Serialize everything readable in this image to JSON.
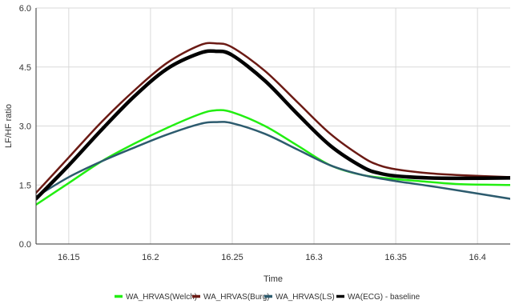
{
  "chart_data": {
    "type": "line",
    "title": "",
    "xlabel": "Time",
    "ylabel": "LF/HF ratio",
    "xlim": [
      16.13,
      16.42
    ],
    "ylim": [
      0,
      6
    ],
    "xticks": [
      16.15,
      16.2,
      16.25,
      16.3,
      16.35,
      16.4
    ],
    "xtick_labels": [
      "16.15",
      "16.2",
      "16.25",
      "16.3",
      "16.35",
      "16.4"
    ],
    "yticks": [
      0,
      1.5,
      3,
      4.5,
      6
    ],
    "ytick_labels": [
      "0.0",
      "1.5",
      "3.0",
      "4.5",
      "6.0"
    ],
    "grid": true,
    "legend_position": "bottom",
    "series": [
      {
        "name": "WA_HRVAS(Welch)",
        "color": "#22ee11",
        "width": 2.5,
        "x": [
          16.13,
          16.15,
          16.17,
          16.19,
          16.21,
          16.23,
          16.24,
          16.25,
          16.27,
          16.29,
          16.31,
          16.33,
          16.35,
          16.37,
          16.39,
          16.42
        ],
        "y": [
          1.0,
          1.55,
          2.1,
          2.55,
          2.95,
          3.3,
          3.4,
          3.35,
          3.0,
          2.5,
          2.0,
          1.75,
          1.65,
          1.58,
          1.52,
          1.5
        ]
      },
      {
        "name": "WA_HRVAS(Burg)",
        "color": "#6b1a14",
        "width": 2.5,
        "x": [
          16.13,
          16.15,
          16.17,
          16.19,
          16.21,
          16.23,
          16.24,
          16.25,
          16.27,
          16.29,
          16.31,
          16.33,
          16.34,
          16.35,
          16.37,
          16.39,
          16.42
        ],
        "y": [
          1.3,
          2.2,
          3.1,
          3.9,
          4.6,
          5.05,
          5.1,
          5.0,
          4.4,
          3.6,
          2.8,
          2.2,
          2.0,
          1.9,
          1.8,
          1.75,
          1.7
        ]
      },
      {
        "name": "WA_HRVAS(LS)",
        "color": "#2d5b6e",
        "width": 2.5,
        "x": [
          16.13,
          16.15,
          16.17,
          16.19,
          16.21,
          16.23,
          16.24,
          16.25,
          16.27,
          16.29,
          16.31,
          16.33,
          16.35,
          16.37,
          16.39,
          16.42
        ],
        "y": [
          1.2,
          1.7,
          2.1,
          2.45,
          2.78,
          3.05,
          3.1,
          3.07,
          2.8,
          2.4,
          2.0,
          1.75,
          1.6,
          1.48,
          1.35,
          1.15
        ]
      },
      {
        "name": "WA(ECG) - baseline",
        "color": "#000000",
        "width": 4.5,
        "x": [
          16.13,
          16.15,
          16.17,
          16.19,
          16.21,
          16.23,
          16.24,
          16.25,
          16.27,
          16.29,
          16.31,
          16.33,
          16.34,
          16.35,
          16.37,
          16.39,
          16.42
        ],
        "y": [
          1.15,
          2.0,
          2.9,
          3.75,
          4.45,
          4.85,
          4.9,
          4.8,
          4.15,
          3.3,
          2.5,
          1.95,
          1.8,
          1.73,
          1.68,
          1.67,
          1.68
        ]
      }
    ]
  }
}
